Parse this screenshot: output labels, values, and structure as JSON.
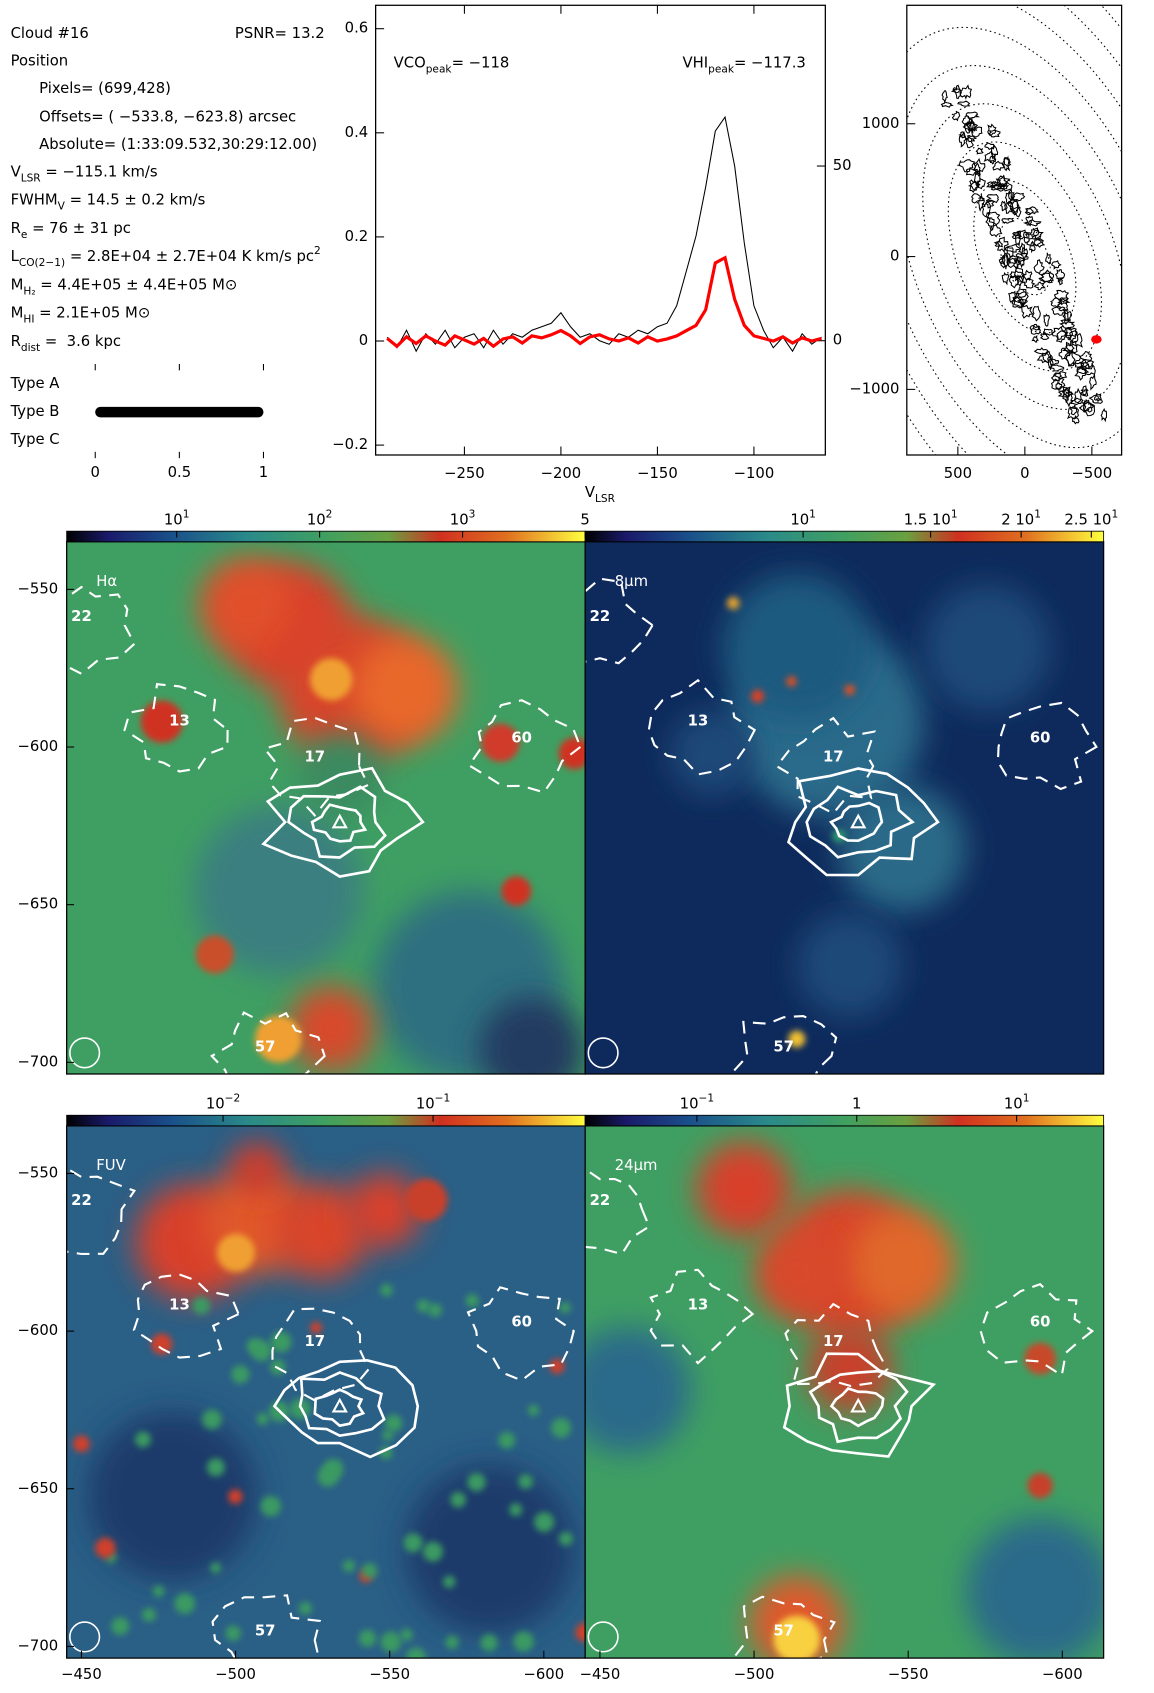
{
  "info": {
    "cloud": "Cloud #16",
    "psnr": "PSNR= 13.2",
    "position": "Position",
    "pixels": "Pixels= (699,428)",
    "offsets": "Offsets= ( −533.8, −623.8) arcsec",
    "absolute": "Absolute= (1:33:09.532,30:29:12.00)",
    "lines": [
      {
        "base": "V",
        "sub": "LSR",
        "text": " = −115.1 km/s"
      },
      {
        "base": "FWHM",
        "sub": "V",
        "text": " = 14.5 ± 0.2 km/s"
      },
      {
        "base": "R",
        "sub": "e",
        "text": " = 76 ± 31 pc"
      },
      {
        "base": "L",
        "sub": "CO(2−1)",
        "text": " = 2.8E+04 ± 2.7E+04 K km/s pc",
        "sup": "2"
      },
      {
        "base": "M",
        "sub": "H₂",
        "text": " = 4.4E+05 ± 4.4E+05 M⊙"
      },
      {
        "base": "M",
        "sub": "HI",
        "text": " = 2.1E+05 M⊙"
      },
      {
        "base": "R",
        "sub": "dist",
        "text": " =  3.6 kpc"
      }
    ]
  },
  "cloud_labels": [
    {
      "text": "22",
      "x": -450,
      "y": -558.7
    },
    {
      "text": "13",
      "x": -481.8,
      "y": -591.9
    },
    {
      "text": "17",
      "x": -525.7,
      "y": -603.4
    },
    {
      "text": "60",
      "x": -592.8,
      "y": -597.3
    },
    {
      "text": "57",
      "x": -509.6,
      "y": -695.3
    }
  ],
  "chart_data": [
    {
      "type": "bar",
      "categories": [
        "Type A",
        "Type B",
        "Type C"
      ],
      "values": [
        0,
        1,
        0
      ],
      "color": "#000000",
      "xlim": [
        0,
        1
      ],
      "xticks": [
        0,
        0.5,
        1
      ]
    },
    {
      "type": "line",
      "x": [
        -290,
        -285,
        -280,
        -275,
        -270,
        -265,
        -260,
        -255,
        -250,
        -245,
        -240,
        -235,
        -230,
        -225,
        -220,
        -215,
        -210,
        -205,
        -200,
        -195,
        -190,
        -185,
        -180,
        -175,
        -170,
        -165,
        -160,
        -155,
        -150,
        -145,
        -140,
        -135,
        -130,
        -125,
        -120,
        -115,
        -110,
        -105,
        -100,
        -95,
        -90,
        -85,
        -80,
        -75,
        -70,
        -65
      ],
      "xlim": [
        -296,
        -63
      ],
      "xticks": [
        {
          "value": -250,
          "label": "−250"
        },
        {
          "value": -200,
          "label": "−200"
        },
        {
          "value": -150,
          "label": "−150"
        },
        {
          "value": -100,
          "label": "−100"
        }
      ],
      "ylim": [
        -0.219,
        0.645
      ],
      "yticks": [
        {
          "value": -0.2,
          "label": "−0.2"
        },
        0,
        0.2,
        0.4,
        0.6
      ],
      "y2lim": [
        -32.7,
        96
      ],
      "y2ticks": [
        0,
        50
      ],
      "xlabel": {
        "base": "V",
        "sub": "LSR"
      },
      "annotations": [
        {
          "base": "VCO",
          "sub": "peak",
          "text": "= −118",
          "color": "#ff0000"
        },
        {
          "base": "VHI",
          "sub": "peak",
          "text": "= −117.3",
          "color": "#000000"
        }
      ],
      "series": [
        {
          "color": "#000000",
          "axis": "y2",
          "values": [
            1,
            -2,
            3,
            -3,
            2,
            -1,
            3,
            -2,
            1,
            2,
            -2,
            3,
            -1,
            2,
            1,
            3,
            4,
            5,
            8,
            4,
            1,
            2,
            0,
            -1,
            2,
            1,
            3,
            2,
            4,
            5,
            10,
            20,
            30,
            44,
            60,
            64,
            50,
            28,
            10,
            3,
            -2,
            1,
            -3,
            2,
            -1,
            1
          ]
        },
        {
          "color": "#ff0000",
          "values": [
            0.005,
            -0.01,
            0.008,
            -0.005,
            0.01,
            0,
            -0.008,
            0.01,
            0.002,
            -0.006,
            0.005,
            -0.01,
            0.004,
            0.008,
            -0.004,
            0.01,
            0.006,
            0.012,
            0.02,
            0.01,
            -0.005,
            0.008,
            0.012,
            0.004,
            0,
            0.006,
            -0.004,
            0.008,
            0,
            0.004,
            0.01,
            0.02,
            0.03,
            0.06,
            0.15,
            0.16,
            0.08,
            0.03,
            0.01,
            0.005,
            0,
            0.008,
            -0.004,
            0.006,
            0,
            0.005
          ]
        }
      ]
    },
    {
      "type": "scatter",
      "x": [
        -533.8
      ],
      "y": [
        -623.8
      ],
      "color": "#ff0000",
      "xlim": [
        881,
        -722
      ],
      "ylim": [
        -1494,
        1892
      ],
      "xticks": [
        500,
        0,
        {
          "value": -500,
          "label": "−500"
        }
      ],
      "yticks": [
        {
          "value": -1000,
          "label": "−1000"
        },
        0,
        1000
      ]
    },
    {
      "type": "image",
      "title": "Hα",
      "scale": "log",
      "clim": [
        1.7,
        7200
      ],
      "cticks": [
        {
          "value": 10,
          "label": "10",
          "exp": "1"
        },
        {
          "value": 100,
          "label": "10",
          "exp": "2"
        },
        {
          "value": 1000,
          "label": "10",
          "exp": "3"
        }
      ],
      "xlim": [
        -445.2,
        -613.4
      ],
      "ylim": [
        -703.7,
        -534.9
      ],
      "yticks": [
        {
          "value": -550,
          "label": "−550"
        },
        {
          "value": -600,
          "label": "−600"
        },
        {
          "value": -650,
          "label": "−650"
        },
        {
          "value": -700,
          "label": "−700"
        }
      ]
    },
    {
      "type": "image",
      "title": "8µm",
      "scale": "log",
      "clim": [
        5,
        26
      ],
      "cticks": [
        5,
        {
          "value": 10,
          "label": "10",
          "exp": "1"
        },
        {
          "value": 15,
          "label": "1.5 10",
          "exp": "1"
        },
        {
          "value": 20,
          "label": "2 10",
          "exp": "1"
        },
        {
          "value": 25,
          "label": "2.5 10",
          "exp": "1"
        }
      ],
      "xlim": [
        -445.2,
        -613.4
      ],
      "ylim": [
        -703.7,
        -534.9
      ]
    },
    {
      "type": "image",
      "title": "FUV",
      "scale": "log",
      "clim": [
        0.0018,
        0.53
      ],
      "cticks": [
        {
          "value": 0.01,
          "label": "10",
          "exp": "−2"
        },
        {
          "value": 0.1,
          "label": "10",
          "exp": "−1"
        }
      ],
      "xlim": [
        -445.2,
        -613.4
      ],
      "ylim": [
        -703.7,
        -534.9
      ],
      "xticks": [
        {
          "value": -450,
          "label": "−450"
        },
        {
          "value": -500,
          "label": "−500"
        },
        {
          "value": -550,
          "label": "−550"
        },
        {
          "value": -600,
          "label": "−600"
        }
      ],
      "yticks": [
        {
          "value": -550,
          "label": "−550"
        },
        {
          "value": -600,
          "label": "−600"
        },
        {
          "value": -650,
          "label": "−650"
        },
        {
          "value": -700,
          "label": "−700"
        }
      ]
    },
    {
      "type": "image",
      "title": "24µm",
      "scale": "log",
      "clim": [
        0.02,
        35
      ],
      "cticks": [
        {
          "value": 0.1,
          "label": "10",
          "exp": "−1"
        },
        1,
        {
          "value": 10,
          "label": "10",
          "exp": "1"
        }
      ],
      "xlim": [
        -445.2,
        -613.4
      ],
      "ylim": [
        -703.7,
        -534.9
      ],
      "xticks": [
        {
          "value": -450,
          "label": "−450"
        },
        {
          "value": -500,
          "label": "−500"
        },
        {
          "value": -550,
          "label": "−550"
        },
        {
          "value": -600,
          "label": "−600"
        }
      ]
    }
  ]
}
